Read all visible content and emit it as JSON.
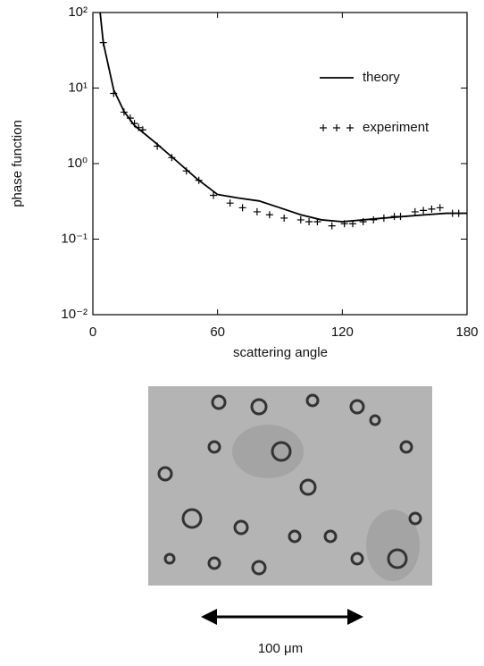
{
  "chart_data": {
    "type": "line",
    "xlabel": "scattering angle",
    "ylabel": "phase function",
    "xlim": [
      0,
      180
    ],
    "xticks": [
      0,
      60,
      120,
      180
    ],
    "ylim": [
      0.01,
      100
    ],
    "ylog": true,
    "yticks": [
      {
        "value": 0.01,
        "label": "10⁻²"
      },
      {
        "value": 0.1,
        "label": "10⁻¹"
      },
      {
        "value": 1,
        "label": "10⁰"
      },
      {
        "value": 10,
        "label": "10¹"
      },
      {
        "value": 100,
        "label": "10²"
      }
    ],
    "legend": "upper right",
    "series": [
      {
        "name": "theory",
        "style": "line",
        "color": "#000000",
        "x": [
          3.5,
          5,
          10,
          15,
          20,
          30,
          40,
          50,
          60,
          70,
          80,
          90,
          100,
          110,
          120,
          130,
          140,
          150,
          160,
          170,
          180
        ],
        "values": [
          100,
          40,
          9.5,
          4.9,
          3.2,
          1.9,
          1.1,
          0.63,
          0.39,
          0.35,
          0.32,
          0.26,
          0.21,
          0.18,
          0.17,
          0.18,
          0.19,
          0.2,
          0.21,
          0.22,
          0.22
        ]
      },
      {
        "name": "experiment",
        "style": "scatter",
        "color": "#000000",
        "x": [
          5,
          10,
          15,
          18,
          20,
          22,
          24,
          31,
          38,
          45,
          51,
          58,
          66,
          72,
          79,
          85,
          92,
          100,
          104,
          108,
          115,
          121,
          125,
          130,
          135,
          140,
          145,
          148,
          155,
          159,
          163,
          167,
          173,
          176
        ],
        "values": [
          40,
          8.5,
          4.8,
          4,
          3.4,
          3,
          2.8,
          1.7,
          1.2,
          0.8,
          0.6,
          0.38,
          0.3,
          0.26,
          0.23,
          0.21,
          0.19,
          0.18,
          0.17,
          0.17,
          0.15,
          0.16,
          0.16,
          0.17,
          0.18,
          0.19,
          0.2,
          0.2,
          0.23,
          0.24,
          0.25,
          0.26,
          0.22,
          0.22
        ]
      }
    ]
  },
  "image": {
    "scale_bar_label": "100 μm"
  }
}
